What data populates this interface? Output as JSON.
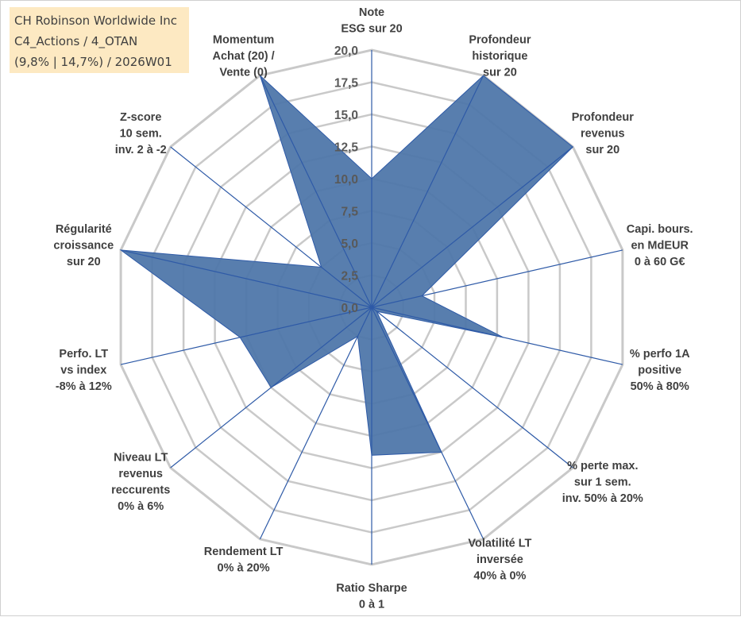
{
  "title_box": {
    "line1": "CH Robinson Worldwide Inc",
    "line2": "C4_Actions / 4_OTAN",
    "line3": "(9,8% | 14,7%) / 2026W01"
  },
  "colors": {
    "fill": "#4f77aa",
    "stroke": "#2e5aa7",
    "grid": "#c9c9c9",
    "title_bg": "#fde9c2"
  },
  "chart_data": {
    "type": "radar",
    "rmax": 20,
    "rmin": 0,
    "ticks": [
      "0,0",
      "2,5",
      "5,0",
      "7,5",
      "10,0",
      "12,5",
      "15,0",
      "17,5",
      "20,0"
    ],
    "axes": [
      {
        "label": [
          "Note",
          "ESG sur 20"
        ],
        "value": 10
      },
      {
        "label": [
          "Profondeur",
          "historique",
          "sur 20"
        ],
        "value": 20
      },
      {
        "label": [
          "Profondeur",
          "revenus",
          "sur 20"
        ],
        "value": 20
      },
      {
        "label": [
          "Capi. bours.",
          "en MdEUR",
          "0 à 60 G€"
        ],
        "value": 4
      },
      {
        "label": [
          "% perfo 1A",
          "positive",
          "50% à 80%"
        ],
        "value": 10.5
      },
      {
        "label": [
          "% perte max.",
          "sur 1 sem.",
          "inv. 50% à 20%"
        ],
        "value": 0.5
      },
      {
        "label": [
          "Volatilité LT",
          "inversée",
          "40% à 0%"
        ],
        "value": 12.5
      },
      {
        "label": [
          "Ratio Sharpe",
          "0 à 1"
        ],
        "value": 11.5
      },
      {
        "label": [
          "Rendement LT",
          "0% à 20%"
        ],
        "value": 2.5
      },
      {
        "label": [
          "Niveau LT",
          "revenus",
          "reccurents",
          "0% à 6%"
        ],
        "value": 10
      },
      {
        "label": [
          "Perfo. LT",
          "vs index",
          "-8% à 12%"
        ],
        "value": 10.5
      },
      {
        "label": [
          "Régularité",
          "croissance",
          "sur 20"
        ],
        "value": 20
      },
      {
        "label": [
          "Z-score",
          "10 sem.",
          "inv. 2 à -2"
        ],
        "value": 5
      },
      {
        "label": [
          "Momentum",
          "Achat (20) /",
          "Vente (0)"
        ],
        "value": 20
      }
    ]
  }
}
